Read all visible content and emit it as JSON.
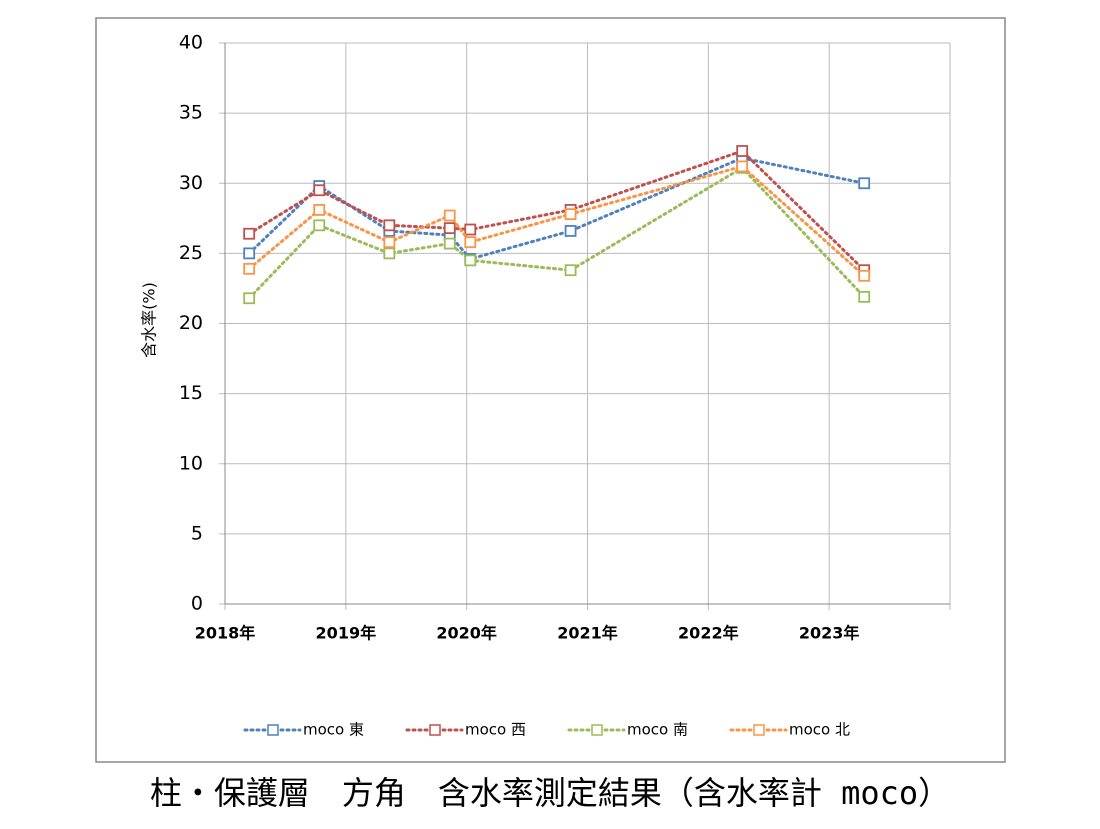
{
  "chart_data": {
    "type": "line",
    "caption": "柱・保護層　方角　含水率測定結果（含水率計 moco）",
    "y_label": "含水率(%)",
    "x": [
      2018.2,
      2018.78,
      2019.36,
      2019.86,
      2020.03,
      2020.86,
      2022.28,
      2023.29
    ],
    "xlim": [
      2018,
      2024
    ],
    "xticks": [
      {
        "value": 2018,
        "label": "2018年"
      },
      {
        "value": 2019,
        "label": "2019年"
      },
      {
        "value": 2020,
        "label": "2020年"
      },
      {
        "value": 2021,
        "label": "2021年"
      },
      {
        "value": 2022,
        "label": "2022年"
      },
      {
        "value": 2023,
        "label": "2023年"
      }
    ],
    "ylim": [
      0,
      40
    ],
    "yticks": [
      0,
      5,
      10,
      15,
      20,
      25,
      30,
      35,
      40
    ],
    "grid": true,
    "legend": "bottom",
    "series": [
      {
        "name": "moco 東",
        "color": "#4f81bd",
        "values": [
          25.0,
          29.8,
          26.6,
          26.3,
          24.6,
          26.6,
          31.8,
          30.0
        ]
      },
      {
        "name": "moco 西",
        "color": "#c0504d",
        "values": [
          26.4,
          29.5,
          27.0,
          26.8,
          26.7,
          28.1,
          32.3,
          23.8
        ]
      },
      {
        "name": "moco 南",
        "color": "#9bbb59",
        "values": [
          21.8,
          27.0,
          25.0,
          25.7,
          24.5,
          23.8,
          31.1,
          21.9
        ]
      },
      {
        "name": "moco 北",
        "color": "#f79646",
        "values": [
          23.9,
          28.1,
          25.8,
          27.7,
          25.8,
          27.8,
          31.2,
          23.4
        ]
      }
    ]
  }
}
